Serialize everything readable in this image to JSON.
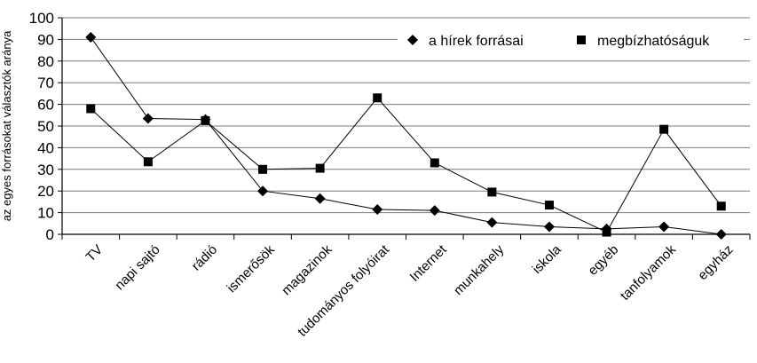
{
  "chart_data": {
    "type": "line",
    "ylabel": "az egyes forrásokat választók aránya",
    "xlabel": "",
    "ylim": [
      0,
      100
    ],
    "yticks": [
      0,
      10,
      20,
      30,
      40,
      50,
      60,
      70,
      80,
      90,
      100
    ],
    "grid": "horizontal",
    "legend_position": "top-right",
    "categories": [
      "TV",
      "napi sajtó",
      "rádió",
      "ismerősök",
      "magazinok",
      "tudományos folyóirat",
      "Internet",
      "munkahely",
      "iskola",
      "egyéb",
      "tanfolyamok",
      "egyház"
    ],
    "series": [
      {
        "name": "a hírek forrásai",
        "marker": "diamond",
        "color": "#000000",
        "values": [
          91,
          53.5,
          53,
          20,
          16.5,
          11.5,
          11,
          5.5,
          3.5,
          2.5,
          3.5,
          0
        ]
      },
      {
        "name": "megbízhatóságuk",
        "marker": "square",
        "color": "#000000",
        "values": [
          58,
          33.5,
          52.5,
          30,
          30.5,
          63,
          33,
          19.5,
          13.5,
          1,
          48.5,
          13
        ]
      }
    ]
  }
}
